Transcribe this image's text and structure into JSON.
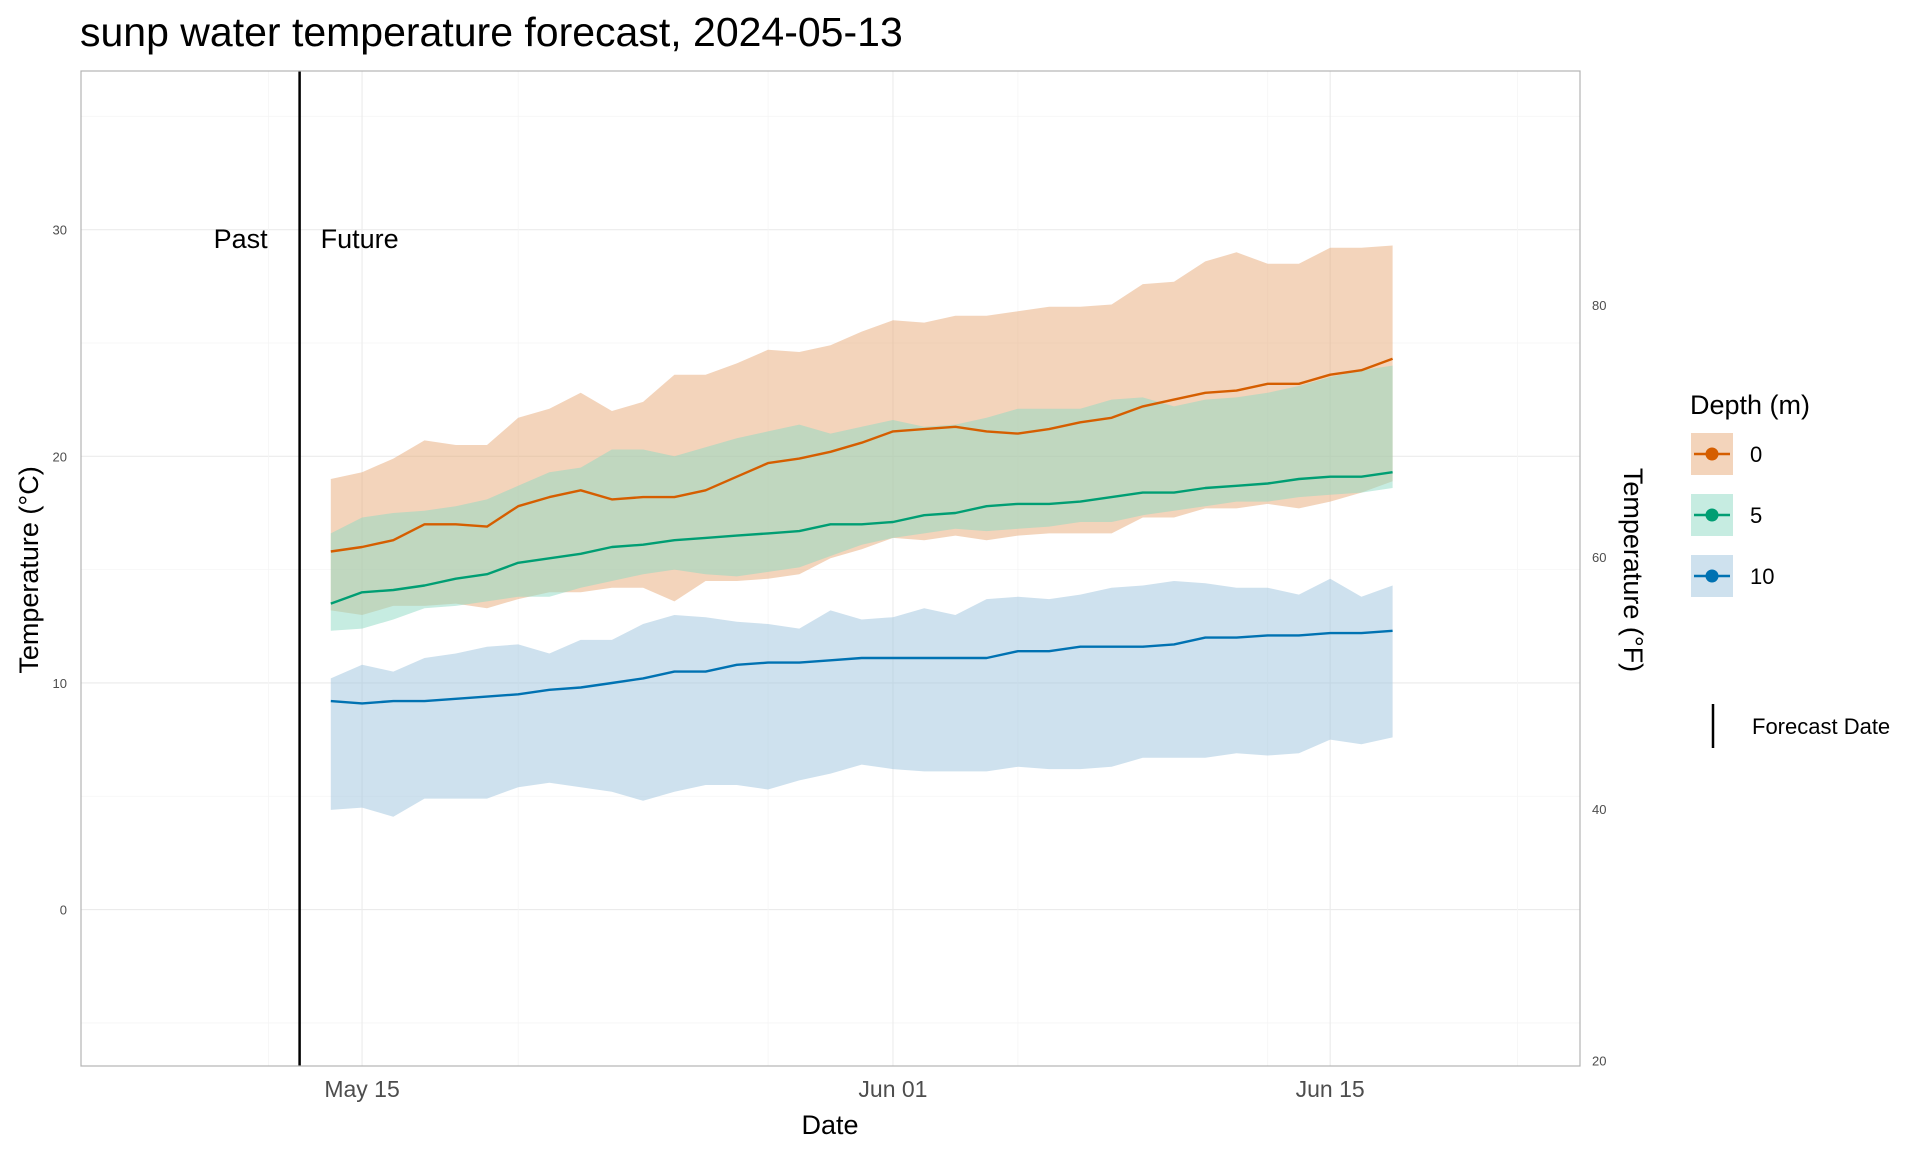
{
  "chart_data": {
    "type": "area",
    "title": "sunp water temperature forecast, 2024-05-13",
    "xlabel": "Date",
    "ylabel": "Temperature (°C)",
    "ylabel_right": "Temperature (°F)",
    "forecast_date": "2024-05-13",
    "xlim": [
      "2024-05-06",
      "2024-06-23"
    ],
    "ylim": [
      -6.9,
      37.0
    ],
    "x_ticks": [
      {
        "date": "2024-05-15",
        "label": "May 15"
      },
      {
        "date": "2024-06-01",
        "label": "Jun 01"
      },
      {
        "date": "2024-06-15",
        "label": "Jun 15"
      }
    ],
    "y_ticks": [
      0,
      10,
      20,
      30
    ],
    "y_ticks_right": [
      20,
      40,
      60,
      80
    ],
    "grid": true,
    "annotations": {
      "past": "Past",
      "future": "Future"
    },
    "legend": {
      "title": "Depth (m)",
      "position": "right",
      "entries": [
        "0",
        "5",
        "10"
      ],
      "forecast_line_label": "Forecast Date"
    },
    "x": [
      "2024-05-14",
      "2024-05-15",
      "2024-05-16",
      "2024-05-17",
      "2024-05-18",
      "2024-05-19",
      "2024-05-20",
      "2024-05-21",
      "2024-05-22",
      "2024-05-23",
      "2024-05-24",
      "2024-05-25",
      "2024-05-26",
      "2024-05-27",
      "2024-05-28",
      "2024-05-29",
      "2024-05-30",
      "2024-05-31",
      "2024-06-01",
      "2024-06-02",
      "2024-06-03",
      "2024-06-04",
      "2024-06-05",
      "2024-06-06",
      "2024-06-07",
      "2024-06-08",
      "2024-06-09",
      "2024-06-10",
      "2024-06-11",
      "2024-06-12",
      "2024-06-13",
      "2024-06-14",
      "2024-06-15",
      "2024-06-16",
      "2024-06-17"
    ],
    "series": [
      {
        "name": "0",
        "color": "#D55E00",
        "fill": "#E8A978",
        "mean": [
          15.8,
          16.0,
          16.3,
          17.0,
          17.0,
          16.9,
          17.8,
          18.2,
          18.5,
          18.1,
          18.2,
          18.2,
          18.5,
          19.1,
          19.7,
          19.9,
          20.2,
          20.6,
          21.1,
          21.2,
          21.3,
          21.1,
          21.0,
          21.2,
          21.5,
          21.7,
          22.2,
          22.5,
          22.8,
          22.9,
          23.2,
          23.2,
          23.6,
          23.8,
          24.3
        ],
        "lower": [
          13.2,
          13.0,
          13.4,
          13.4,
          13.5,
          13.3,
          13.7,
          14.0,
          14.0,
          14.2,
          14.2,
          13.6,
          14.5,
          14.5,
          14.6,
          14.8,
          15.5,
          15.9,
          16.4,
          16.3,
          16.5,
          16.3,
          16.5,
          16.6,
          16.6,
          16.6,
          17.3,
          17.3,
          17.7,
          17.7,
          17.9,
          17.7,
          18.0,
          18.4,
          18.9
        ],
        "upper": [
          19.0,
          19.3,
          19.9,
          20.7,
          20.5,
          20.5,
          21.7,
          22.1,
          22.8,
          22.0,
          22.4,
          23.6,
          23.6,
          24.1,
          24.7,
          24.6,
          24.9,
          25.5,
          26.0,
          25.9,
          26.2,
          26.2,
          26.4,
          26.6,
          26.6,
          26.7,
          27.6,
          27.7,
          28.6,
          29.0,
          28.5,
          28.5,
          29.2,
          29.2,
          29.3
        ]
      },
      {
        "name": "5",
        "color": "#009E73",
        "fill": "#8ED9C4",
        "mean": [
          13.5,
          14.0,
          14.1,
          14.3,
          14.6,
          14.8,
          15.3,
          15.5,
          15.7,
          16.0,
          16.1,
          16.3,
          16.4,
          16.5,
          16.6,
          16.7,
          17.0,
          17.0,
          17.1,
          17.4,
          17.5,
          17.8,
          17.9,
          17.9,
          18.0,
          18.2,
          18.4,
          18.4,
          18.6,
          18.7,
          18.8,
          19.0,
          19.1,
          19.1,
          19.3
        ],
        "lower": [
          12.3,
          12.4,
          12.8,
          13.3,
          13.4,
          13.6,
          13.8,
          13.8,
          14.2,
          14.5,
          14.8,
          15.0,
          14.8,
          14.7,
          14.9,
          15.1,
          15.6,
          16.1,
          16.4,
          16.6,
          16.8,
          16.7,
          16.8,
          16.9,
          17.1,
          17.1,
          17.4,
          17.6,
          17.8,
          18.0,
          18.0,
          18.2,
          18.3,
          18.4,
          18.6
        ],
        "upper": [
          16.6,
          17.3,
          17.5,
          17.6,
          17.8,
          18.1,
          18.7,
          19.3,
          19.5,
          20.3,
          20.3,
          20.0,
          20.4,
          20.8,
          21.1,
          21.4,
          21.0,
          21.3,
          21.6,
          21.3,
          21.4,
          21.7,
          22.1,
          22.1,
          22.1,
          22.5,
          22.6,
          22.2,
          22.5,
          22.6,
          22.8,
          23.1,
          23.5,
          23.8,
          24.0
        ]
      },
      {
        "name": "10",
        "color": "#0072B2",
        "fill": "#9DC4DE",
        "mean": [
          9.2,
          9.1,
          9.2,
          9.2,
          9.3,
          9.4,
          9.5,
          9.7,
          9.8,
          10.0,
          10.2,
          10.5,
          10.5,
          10.8,
          10.9,
          10.9,
          11.0,
          11.1,
          11.1,
          11.1,
          11.1,
          11.1,
          11.4,
          11.4,
          11.6,
          11.6,
          11.6,
          11.7,
          12.0,
          12.0,
          12.1,
          12.1,
          12.2,
          12.2,
          12.3
        ],
        "lower": [
          4.4,
          4.5,
          4.1,
          4.9,
          4.9,
          4.9,
          5.4,
          5.6,
          5.4,
          5.2,
          4.8,
          5.2,
          5.5,
          5.5,
          5.3,
          5.7,
          6.0,
          6.4,
          6.2,
          6.1,
          6.1,
          6.1,
          6.3,
          6.2,
          6.2,
          6.3,
          6.7,
          6.7,
          6.7,
          6.9,
          6.8,
          6.9,
          7.5,
          7.3,
          7.6
        ],
        "upper": [
          10.2,
          10.8,
          10.5,
          11.1,
          11.3,
          11.6,
          11.7,
          11.3,
          11.9,
          11.9,
          12.6,
          13.0,
          12.9,
          12.7,
          12.6,
          12.4,
          13.2,
          12.8,
          12.9,
          13.3,
          13.0,
          13.7,
          13.8,
          13.7,
          13.9,
          14.2,
          14.3,
          14.5,
          14.4,
          14.2,
          14.2,
          13.9,
          14.6,
          13.8,
          14.3
        ]
      }
    ]
  }
}
